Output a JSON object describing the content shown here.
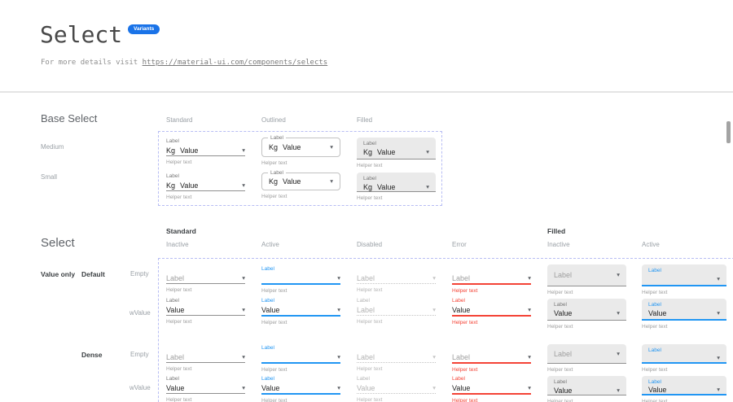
{
  "colors": {
    "accent": "#2196f3",
    "error": "#f44336",
    "badge_bg": "#1a73e8",
    "dashed_border": "#b7bdf4",
    "filled_bg": "#eaeaea"
  },
  "header": {
    "title": "Select",
    "badge": "Variants",
    "details_prefix": "For more details visit ",
    "details_link": "https://material-ui.com/components/selects"
  },
  "base_select": {
    "heading": "Base Select",
    "column_headers": [
      "Standard",
      "Outlined",
      "Filled"
    ],
    "row_headers": [
      "Medium",
      "Small"
    ],
    "cells": [
      {
        "variant": "standard",
        "state": "inactive",
        "label": "Label",
        "prefix": "Kg",
        "value": "Value",
        "helper": "Helper text"
      },
      {
        "variant": "outlined",
        "state": "inactive",
        "label": "Label",
        "prefix": "Kg",
        "value": "Value",
        "helper": "Helper text"
      },
      {
        "variant": "filled",
        "state": "inactive",
        "label": "Label",
        "prefix": "Kg",
        "value": "Value",
        "helper": "Helper text"
      },
      {
        "variant": "standard",
        "state": "inactive",
        "label": "Label",
        "prefix": "Kg",
        "value": "Value",
        "helper": "Helper text",
        "dense": true
      },
      {
        "variant": "outlined",
        "state": "inactive",
        "label": "Label",
        "prefix": "Kg",
        "value": "Value",
        "helper": "Helper text",
        "dense": true
      },
      {
        "variant": "filled",
        "state": "inactive",
        "label": "Label",
        "prefix": "Kg",
        "value": "Value",
        "helper": "Helper text",
        "dense": true
      }
    ]
  },
  "select": {
    "heading": "Select",
    "group_headers": [
      "Standard",
      "Filled"
    ],
    "state_headers": [
      "Inactive",
      "Active",
      "Disabled",
      "Error",
      "Inactive",
      "Active"
    ],
    "row_label_value_only": "Value only",
    "row_groups": [
      {
        "label": "Default",
        "rows": [
          "Empty",
          "wValue"
        ]
      },
      {
        "label": "Dense",
        "rows": [
          "Empty",
          "wValue"
        ]
      }
    ],
    "cells": [
      {
        "variant": "standard",
        "state": "inactive",
        "placeholder": "Label",
        "helper": "Helper text"
      },
      {
        "variant": "standard",
        "state": "active",
        "label": "Label",
        "helper": "Helper text"
      },
      {
        "variant": "standard",
        "state": "disabled",
        "placeholder": "Label",
        "helper": "Helper text"
      },
      {
        "variant": "standard",
        "state": "error",
        "placeholder": "Label",
        "helper": "Helper text"
      },
      {
        "variant": "filled",
        "state": "inactive",
        "placeholder": "Label",
        "helper": "Helper text"
      },
      {
        "variant": "filled",
        "state": "active",
        "label": "Label",
        "helper": "Helper text"
      },
      {
        "variant": "standard",
        "state": "inactive",
        "label": "Label",
        "value": "Value",
        "helper": "Helper text"
      },
      {
        "variant": "standard",
        "state": "active",
        "label": "Label",
        "value": "Value",
        "helper": "Helper text"
      },
      {
        "variant": "standard",
        "state": "disabled",
        "label": "Label",
        "value": "Label",
        "helper": "Helper text"
      },
      {
        "variant": "standard",
        "state": "error",
        "label": "Label",
        "value": "Value",
        "helper": "Helper text"
      },
      {
        "variant": "filled",
        "state": "inactive",
        "label": "Label",
        "value": "Value",
        "helper": "Helper text"
      },
      {
        "variant": "filled",
        "state": "active",
        "label": "Label",
        "value": "Value",
        "helper": "Helper text"
      },
      {
        "variant": "standard",
        "state": "inactive",
        "placeholder": "Label",
        "helper": "Helper text",
        "dense": true
      },
      {
        "variant": "standard",
        "state": "active",
        "label": "Label",
        "helper": "Helper text",
        "dense": true
      },
      {
        "variant": "standard",
        "state": "disabled",
        "placeholder": "Label",
        "helper": "Helper text",
        "dense": true
      },
      {
        "variant": "standard",
        "state": "error",
        "placeholder": "Label",
        "helper": "Helper text",
        "dense": true
      },
      {
        "variant": "filled",
        "state": "inactive",
        "placeholder": "Label",
        "helper": "Helper text",
        "dense": true
      },
      {
        "variant": "filled",
        "state": "active",
        "label": "Label",
        "helper": "Helper text",
        "dense": true
      },
      {
        "variant": "standard",
        "state": "inactive",
        "label": "Label",
        "value": "Value",
        "helper": "Helper text",
        "dense": true
      },
      {
        "variant": "standard",
        "state": "active",
        "label": "Label",
        "value": "Value",
        "helper": "Helper text",
        "dense": true
      },
      {
        "variant": "standard",
        "state": "disabled",
        "label": "Label",
        "value": "Value",
        "helper": "Helper text",
        "dense": true
      },
      {
        "variant": "standard",
        "state": "error",
        "label": "Label",
        "value": "Value",
        "helper": "Helper text",
        "dense": true
      },
      {
        "variant": "filled",
        "state": "inactive",
        "label": "Label",
        "value": "Value",
        "helper": "Helper text",
        "dense": true
      },
      {
        "variant": "filled",
        "state": "active",
        "label": "Label",
        "value": "Value",
        "helper": "Helper text",
        "dense": true
      }
    ]
  }
}
